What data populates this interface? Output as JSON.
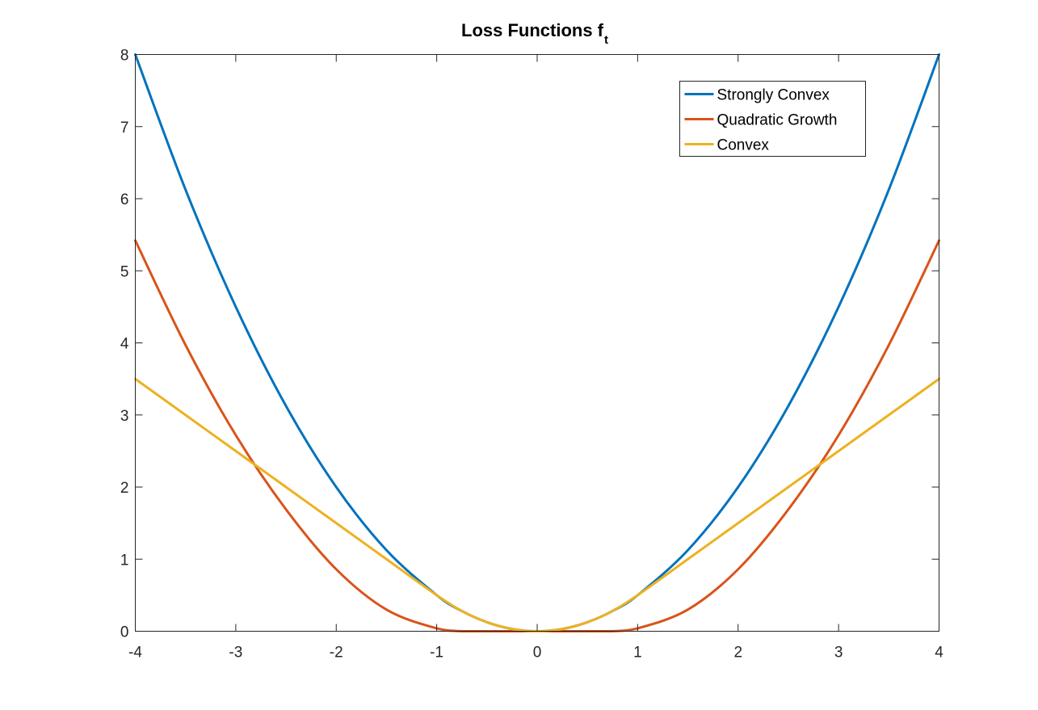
{
  "chart_data": {
    "type": "line",
    "title": "Loss Functions f",
    "title_subscript": "t",
    "xlabel": "",
    "ylabel": "",
    "xlim": [
      -4,
      4
    ],
    "ylim": [
      0,
      8
    ],
    "xticks": [
      -4,
      -3,
      -2,
      -1,
      0,
      1,
      2,
      3,
      4
    ],
    "yticks": [
      0,
      1,
      2,
      3,
      4,
      5,
      6,
      7,
      8
    ],
    "grid": false,
    "legend_position": "top-right",
    "x": [
      -4,
      -3.5,
      -3,
      -2.5,
      -2,
      -1.5,
      -1,
      -0.75,
      -0.5,
      -0.25,
      0,
      0.25,
      0.5,
      0.75,
      1,
      1.5,
      2,
      2.5,
      3,
      3.5,
      4
    ],
    "series": [
      {
        "name": "Strongly Convex",
        "color": "#0072BD",
        "values": [
          8,
          6.125,
          4.5,
          3.125,
          2,
          1.125,
          0.5,
          0.281,
          0.125,
          0.031,
          0,
          0.031,
          0.125,
          0.281,
          0.5,
          1.125,
          2,
          3.125,
          4.5,
          6.125,
          8
        ]
      },
      {
        "name": "Quadratic Growth",
        "color": "#D95319",
        "values": [
          5.42,
          3.97,
          2.72,
          1.69,
          0.86,
          0.3,
          0.04,
          0,
          0,
          0,
          0,
          0,
          0,
          0,
          0.04,
          0.3,
          0.86,
          1.69,
          2.72,
          3.97,
          5.42
        ]
      },
      {
        "name": "Convex",
        "color": "#EDB120",
        "values": [
          3.5,
          3.0,
          2.5,
          2.0,
          1.5,
          1.0,
          0.5,
          0.281,
          0.125,
          0.031,
          0,
          0.031,
          0.125,
          0.281,
          0.5,
          1.0,
          1.5,
          2.0,
          2.5,
          3.0,
          3.5
        ]
      }
    ]
  }
}
